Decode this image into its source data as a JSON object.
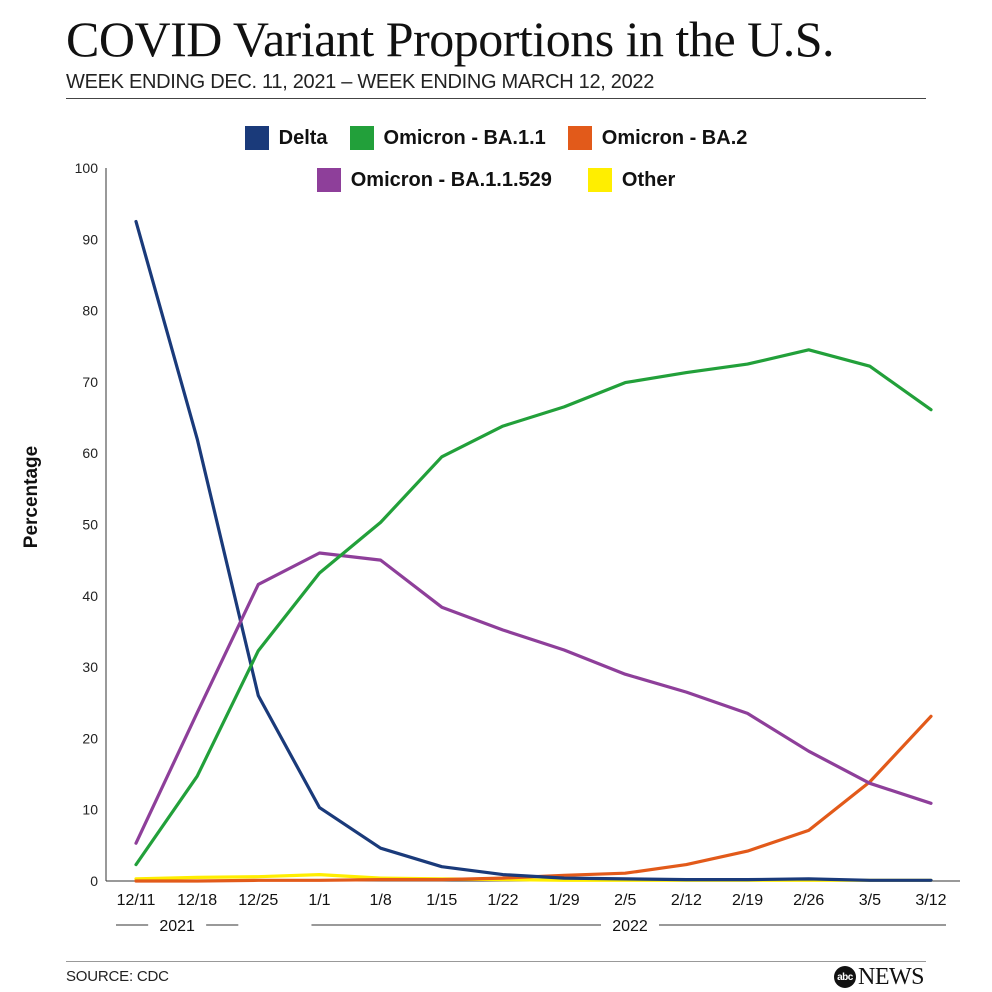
{
  "header": {
    "title": "COVID Variant Proportions in the U.S.",
    "subtitle": "WEEK ENDING DEC. 11, 2021 – WEEK ENDING MARCH 12, 2022"
  },
  "footer": {
    "source": "SOURCE: CDC",
    "logo_mark": "abc",
    "logo_text": "NEWS"
  },
  "chart_data": {
    "type": "line",
    "title": "COVID Variant Proportions in the U.S.",
    "subtitle": "WEEK ENDING DEC. 11, 2021 – WEEK ENDING MARCH 12, 2022",
    "ylabel": "Percentage",
    "xlabel": "",
    "ylim": [
      0,
      100
    ],
    "yticks": [
      0,
      10,
      20,
      30,
      40,
      50,
      60,
      70,
      80,
      90,
      100
    ],
    "grid": false,
    "legend_position": "top-center",
    "categories": [
      "12/11",
      "12/18",
      "12/25",
      "1/1",
      "1/8",
      "1/15",
      "1/22",
      "1/29",
      "2/5",
      "2/12",
      "2/19",
      "2/26",
      "3/5",
      "3/12"
    ],
    "year_groups": [
      {
        "label": "2021",
        "from": "12/11",
        "to": "12/25"
      },
      {
        "label": "2022",
        "from": "1/1",
        "to": "3/12"
      }
    ],
    "series": [
      {
        "name": "Delta",
        "color": "#1a3a7a",
        "values": [
          92.5,
          62,
          26,
          10.3,
          4.6,
          2.0,
          0.9,
          0.4,
          0.3,
          0.2,
          0.2,
          0.3,
          0.1,
          0.1
        ]
      },
      {
        "name": "Omicron - BA.1.1",
        "color": "#22a03a",
        "values": [
          2.3,
          14.7,
          32.3,
          43.2,
          50.3,
          59.5,
          63.8,
          66.5,
          69.9,
          71.3,
          72.5,
          74.5,
          72.2,
          66.1
        ]
      },
      {
        "name": "Omicron - BA.2",
        "color": "#e25a1a",
        "values": [
          0.0,
          0.0,
          0.1,
          0.1,
          0.2,
          0.2,
          0.4,
          0.8,
          1.1,
          2.3,
          4.2,
          7.1,
          13.9,
          23.1
        ]
      },
      {
        "name": "Omicron - BA.1.1.529",
        "color": "#8e3f9a",
        "values": [
          5.3,
          23.6,
          41.6,
          46.0,
          45.0,
          38.4,
          35.2,
          32.4,
          29.0,
          26.5,
          23.5,
          18.2,
          13.7,
          10.9
        ]
      },
      {
        "name": "Other",
        "color": "#ffee00",
        "values": [
          0.3,
          0.5,
          0.6,
          0.9,
          0.4,
          0.3,
          0.2,
          0.1,
          0.1,
          0.1,
          0.1,
          0.1,
          0.1,
          0.1
        ]
      }
    ]
  }
}
